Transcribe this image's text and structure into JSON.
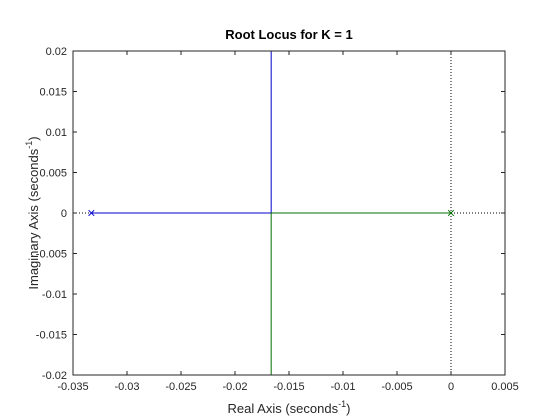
{
  "chart_data": {
    "type": "line",
    "title": "Root Locus for K = 1",
    "xlabel": {
      "text": "Real Axis (seconds",
      "sup": "-1",
      "close": ")"
    },
    "ylabel": {
      "text": "Imaginary Axis (seconds",
      "sup": "-1",
      "close": ")"
    },
    "xlim": [
      -0.035,
      0.005
    ],
    "ylim": [
      -0.02,
      0.02
    ],
    "xticks": [
      -0.035,
      -0.03,
      -0.025,
      -0.02,
      -0.015,
      -0.01,
      -0.005,
      0,
      0.005
    ],
    "xtick_labels": [
      "-0.035",
      "-0.03",
      "-0.025",
      "-0.02",
      "-0.015",
      "-0.01",
      "-0.005",
      "0",
      "0.005"
    ],
    "yticks": [
      -0.02,
      -0.015,
      -0.01,
      -0.005,
      0,
      0.005,
      0.01,
      0.015,
      0.02
    ],
    "ytick_labels": [
      "-0.02",
      "-0.015",
      "-0.01",
      "-0.005",
      "0",
      "0.005",
      "0.01",
      "0.015",
      "0.02"
    ],
    "grid": false,
    "series": [
      {
        "color": "#0000cc",
        "x": [
          -0.0333,
          -0.01665,
          -0.01665
        ],
        "y": [
          0,
          0,
          0.02
        ]
      },
      {
        "color": "#007000",
        "x": [
          0,
          -0.01665,
          -0.01665
        ],
        "y": [
          0,
          0,
          -0.02
        ]
      }
    ],
    "poles": [
      {
        "x": -0.0333,
        "y": 0,
        "color": "#0000cc"
      },
      {
        "x": 0,
        "y": 0,
        "color": "#007000"
      }
    ],
    "reference_lines": [
      {
        "orientation": "vertical",
        "value": 0,
        "style": "dotted",
        "color": "#000000"
      },
      {
        "orientation": "horizontal",
        "value": 0,
        "style": "dotted",
        "color": "#000000"
      }
    ]
  }
}
